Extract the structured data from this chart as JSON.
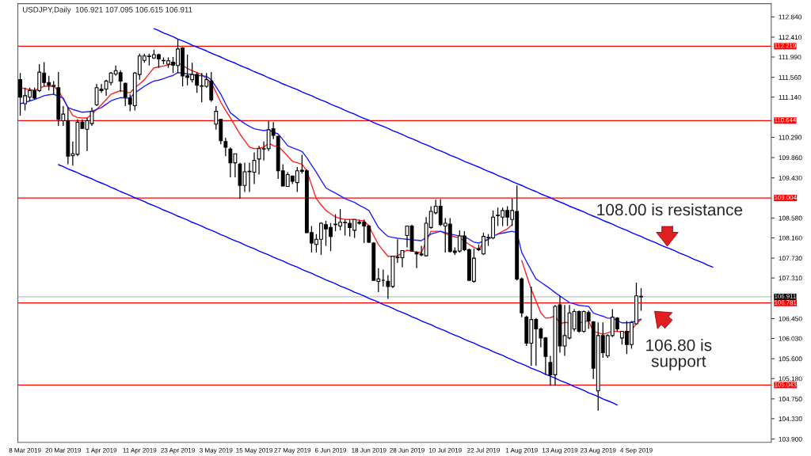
{
  "chart_data": {
    "type": "candlestick",
    "title": "USDJPY,Daily  106.921 107.095 106.615 106.911",
    "categories": [
      null,
      "8 Mar 2019",
      null,
      null,
      null,
      null,
      null,
      null,
      null,
      "20 Mar 2019",
      null,
      null,
      null,
      null,
      null,
      null,
      null,
      "1 Apr 2019",
      null,
      null,
      null,
      null,
      null,
      null,
      null,
      "11 Apr 2019",
      null,
      null,
      null,
      null,
      null,
      null,
      null,
      "23 Apr 2019",
      null,
      null,
      null,
      null,
      null,
      null,
      null,
      "3 May 2019",
      null,
      null,
      null,
      null,
      null,
      null,
      null,
      "15 May 2019",
      null,
      null,
      null,
      null,
      null,
      null,
      null,
      "27 May 2019",
      null,
      null,
      null,
      null,
      null,
      null,
      null,
      "6 Jun 2019",
      null,
      null,
      null,
      null,
      null,
      null,
      null,
      "18 Jun 2019",
      null,
      null,
      null,
      null,
      null,
      null,
      null,
      "28 Jun 2019",
      null,
      null,
      null,
      null,
      null,
      null,
      null,
      "10 Jul 2019",
      null,
      null,
      null,
      null,
      null,
      null,
      null,
      "22 Jul 2019",
      null,
      null,
      null,
      null,
      null,
      null,
      null,
      "1 Aug 2019",
      null,
      null,
      null,
      null,
      null,
      null,
      null,
      "13 Aug 2019",
      null,
      null,
      null,
      null,
      null,
      null,
      null,
      "23 Aug 2019",
      null,
      null,
      null,
      null,
      null,
      null,
      null,
      "4 Sep 2019",
      null,
      null,
      null,
      null,
      null,
      null,
      null,
      null,
      null,
      null,
      null,
      null,
      null,
      null,
      null,
      null,
      null,
      null,
      null,
      null,
      null,
      null,
      null,
      null,
      null,
      null,
      null,
      null
    ],
    "ohlc": [
      [
        111.51,
        111.65,
        110.75,
        111.14
      ],
      [
        111.0,
        111.34,
        110.86,
        111.17
      ],
      [
        111.14,
        111.34,
        111.06,
        111.28
      ],
      [
        111.28,
        111.34,
        111.09,
        111.12
      ],
      [
        111.28,
        111.84,
        111.25,
        111.67
      ],
      [
        111.65,
        111.88,
        111.37,
        111.45
      ],
      [
        111.45,
        111.59,
        111.28,
        111.39
      ],
      [
        111.37,
        111.48,
        111.2,
        111.39
      ],
      [
        111.34,
        111.67,
        110.53,
        110.67
      ],
      [
        110.64,
        110.95,
        110.53,
        110.78
      ],
      [
        110.64,
        110.92,
        109.72,
        109.89
      ],
      [
        109.9,
        110.2,
        109.69,
        109.94
      ],
      [
        109.93,
        110.67,
        109.89,
        110.61
      ],
      [
        110.61,
        110.67,
        110.47,
        110.48
      ],
      [
        110.46,
        110.7,
        110.0,
        110.64
      ],
      [
        110.58,
        110.92,
        110.53,
        110.84
      ],
      [
        110.98,
        111.42,
        110.95,
        111.34
      ],
      [
        111.31,
        111.42,
        111.23,
        111.28
      ],
      [
        111.31,
        111.51,
        111.17,
        111.48
      ],
      [
        111.45,
        111.67,
        111.39,
        111.65
      ],
      [
        111.63,
        111.81,
        111.59,
        111.7
      ],
      [
        111.66,
        111.71,
        111.25,
        111.48
      ],
      [
        111.43,
        111.45,
        110.95,
        111.14
      ],
      [
        111.12,
        111.2,
        110.84,
        110.99
      ],
      [
        110.96,
        111.67,
        110.86,
        111.65
      ],
      [
        111.62,
        112.06,
        111.51,
        112.01
      ],
      [
        111.92,
        112.06,
        111.87,
        112.01
      ],
      [
        112.0,
        112.06,
        111.81,
        112.01
      ],
      [
        111.97,
        112.14,
        111.95,
        112.04
      ],
      [
        112.04,
        112.06,
        111.76,
        111.95
      ],
      [
        111.92,
        111.98,
        111.84,
        111.91
      ],
      [
        111.84,
        111.98,
        111.76,
        111.91
      ],
      [
        111.88,
        111.99,
        111.65,
        111.82
      ],
      [
        111.81,
        112.37,
        111.65,
        112.16
      ],
      [
        112.18,
        112.2,
        111.37,
        111.59
      ],
      [
        111.59,
        112.04,
        111.39,
        111.56
      ],
      [
        111.51,
        111.87,
        111.45,
        111.62
      ],
      [
        111.62,
        111.67,
        111.23,
        111.39
      ],
      [
        111.38,
        111.65,
        111.03,
        111.37
      ],
      [
        111.37,
        111.65,
        111.34,
        111.51
      ],
      [
        111.48,
        111.67,
        111.04,
        111.08
      ],
      [
        110.57,
        110.95,
        110.45,
        110.84
      ],
      [
        110.67,
        110.67,
        110.14,
        110.22
      ],
      [
        110.2,
        110.28,
        109.89,
        110.08
      ],
      [
        110.04,
        110.08,
        109.44,
        109.75
      ],
      [
        109.75,
        109.94,
        109.44,
        109.94
      ],
      [
        109.72,
        109.75,
        108.99,
        109.27
      ],
      [
        109.27,
        109.75,
        109.13,
        109.56
      ],
      [
        109.57,
        109.75,
        109.13,
        109.56
      ],
      [
        109.55,
        109.97,
        109.3,
        109.8
      ],
      [
        109.83,
        110.11,
        109.5,
        110.05
      ],
      [
        110.04,
        110.2,
        109.8,
        110.05
      ],
      [
        110.05,
        110.64,
        110.0,
        110.45
      ],
      [
        110.47,
        110.61,
        110.25,
        110.33
      ],
      [
        110.31,
        110.33,
        109.41,
        109.58
      ],
      [
        109.58,
        109.72,
        109.25,
        109.26
      ],
      [
        109.25,
        109.55,
        109.24,
        109.5
      ],
      [
        109.47,
        109.47,
        109.3,
        109.36
      ],
      [
        109.33,
        109.66,
        109.13,
        109.58
      ],
      [
        109.57,
        109.92,
        109.52,
        109.59
      ],
      [
        109.58,
        109.61,
        108.27,
        108.27
      ],
      [
        108.27,
        108.41,
        107.85,
        108.05
      ],
      [
        108.02,
        108.24,
        107.85,
        108.13
      ],
      [
        108.13,
        108.49,
        107.8,
        108.47
      ],
      [
        108.44,
        108.52,
        107.99,
        108.35
      ],
      [
        108.38,
        108.47,
        107.88,
        108.19
      ],
      [
        108.45,
        108.66,
        108.3,
        108.44
      ],
      [
        108.41,
        108.77,
        108.32,
        108.49
      ],
      [
        108.48,
        108.55,
        108.21,
        108.49
      ],
      [
        108.47,
        108.55,
        108.19,
        108.38
      ],
      [
        108.32,
        108.55,
        108.16,
        108.55
      ],
      [
        108.49,
        108.55,
        108.44,
        108.47
      ],
      [
        108.49,
        108.55,
        108.05,
        108.41
      ],
      [
        108.41,
        108.44,
        108.05,
        108.07
      ],
      [
        108.05,
        108.07,
        107.26,
        107.26
      ],
      [
        107.24,
        107.52,
        107.01,
        107.29
      ],
      [
        107.26,
        107.49,
        107.13,
        107.26
      ],
      [
        107.24,
        107.37,
        106.87,
        107.13
      ],
      [
        107.13,
        107.77,
        107.1,
        107.77
      ],
      [
        107.74,
        108.13,
        107.63,
        107.75
      ],
      [
        107.74,
        107.89,
        107.54,
        107.89
      ],
      [
        108.21,
        108.41,
        107.96,
        108.41
      ],
      [
        108.41,
        108.44,
        107.88,
        107.88
      ],
      [
        107.85,
        107.88,
        107.52,
        107.82
      ],
      [
        107.8,
        107.99,
        107.77,
        107.82
      ],
      [
        107.78,
        108.6,
        107.77,
        108.47
      ],
      [
        108.38,
        108.83,
        108.35,
        108.72
      ],
      [
        108.69,
        108.97,
        108.66,
        108.83
      ],
      [
        108.83,
        108.98,
        108.41,
        108.44
      ],
      [
        108.41,
        108.58,
        107.85,
        108.47
      ],
      [
        108.45,
        108.58,
        107.85,
        107.87
      ],
      [
        107.88,
        107.96,
        107.8,
        107.85
      ],
      [
        107.88,
        108.32,
        107.85,
        108.2
      ],
      [
        108.2,
        108.3,
        107.88,
        107.91
      ],
      [
        107.91,
        107.93,
        107.26,
        107.26
      ],
      [
        107.24,
        107.93,
        107.21,
        107.73
      ],
      [
        107.91,
        108.02,
        107.88,
        107.93
      ],
      [
        107.82,
        108.27,
        107.8,
        108.19
      ],
      [
        108.16,
        108.24,
        107.99,
        108.17
      ],
      [
        108.16,
        108.74,
        108.13,
        108.6
      ],
      [
        108.63,
        108.8,
        108.41,
        108.64
      ],
      [
        108.6,
        108.8,
        108.41,
        108.74
      ],
      [
        108.74,
        108.83,
        108.41,
        108.6
      ],
      [
        108.55,
        108.99,
        108.41,
        108.74
      ],
      [
        108.72,
        109.27,
        107.26,
        107.29
      ],
      [
        107.29,
        107.32,
        106.48,
        106.57
      ],
      [
        106.48,
        106.51,
        105.87,
        105.93
      ],
      [
        105.93,
        107.13,
        105.45,
        106.43
      ],
      [
        106.43,
        106.46,
        105.45,
        106.23
      ],
      [
        106.23,
        106.26,
        105.84,
        106.04
      ],
      [
        106.04,
        106.06,
        105.26,
        105.65
      ],
      [
        105.52,
        105.66,
        105.03,
        105.26
      ],
      [
        105.26,
        106.74,
        105.03,
        106.71
      ],
      [
        106.74,
        106.93,
        105.73,
        105.87
      ],
      [
        105.87,
        106.74,
        105.66,
        106.09
      ],
      [
        106.04,
        106.74,
        106.01,
        106.57
      ],
      [
        106.23,
        106.65,
        106.18,
        106.6
      ],
      [
        106.6,
        106.62,
        106.15,
        106.18
      ],
      [
        106.18,
        106.62,
        106.15,
        106.6
      ],
      [
        106.58,
        106.62,
        106.23,
        106.4
      ],
      [
        106.38,
        106.4,
        105.17,
        105.4
      ],
      [
        104.92,
        106.37,
        104.5,
        106.09
      ],
      [
        106.09,
        106.37,
        105.62,
        105.73
      ],
      [
        105.66,
        106.12,
        105.62,
        106.09
      ],
      [
        106.09,
        106.65,
        106.06,
        106.48
      ],
      [
        106.46,
        106.48,
        106.18,
        106.23
      ],
      [
        106.04,
        106.18,
        105.9,
        106.18
      ],
      [
        106.18,
        106.4,
        105.7,
        105.9
      ],
      [
        105.9,
        106.4,
        105.81,
        106.37
      ],
      [
        106.34,
        107.21,
        106.32,
        106.93
      ],
      [
        106.921,
        107.095,
        106.615,
        106.911
      ],
      null,
      null,
      null,
      null,
      null,
      null,
      null,
      null,
      null,
      null,
      null,
      null,
      null,
      null,
      null,
      null,
      null,
      null,
      null,
      null,
      null,
      null,
      null,
      null,
      null,
      null,
      null
    ],
    "series": [
      {
        "type": "line",
        "color": "#ff2020",
        "values": [
          111.34,
          111.32,
          111.3,
          111.28,
          111.33,
          111.37,
          111.37,
          111.37,
          111.28,
          111.1,
          110.92,
          110.75,
          110.71,
          110.7,
          110.7,
          110.78,
          110.88,
          110.98,
          111.09,
          111.2,
          111.24,
          111.28,
          111.25,
          111.23,
          111.34,
          111.42,
          111.51,
          111.64,
          111.76,
          111.78,
          111.8,
          111.82,
          111.84,
          111.87,
          111.81,
          111.75,
          111.7,
          111.66,
          111.62,
          111.53,
          111.45,
          111.24,
          111.03,
          110.86,
          110.7,
          110.53,
          110.36,
          110.22,
          110.08,
          110.05,
          110.06,
          110.08,
          110.17,
          110.11,
          110.1,
          110.0,
          109.89,
          109.78,
          109.75,
          109.72,
          109.58,
          109.28,
          108.99,
          108.86,
          108.74,
          108.67,
          108.6,
          108.57,
          108.55,
          108.55,
          108.55,
          108.53,
          108.52,
          108.41,
          108.21,
          108.02,
          107.89,
          107.77,
          107.77,
          107.78,
          107.84,
          107.9,
          107.88,
          107.86,
          107.85,
          108.08,
          108.3,
          108.3,
          108.3,
          108.25,
          108.21,
          108.18,
          108.16,
          108.09,
          108.02,
          107.96,
          107.91,
          108.07,
          108.13,
          null,
          108.24,
          108.3,
          108.35,
          108.44,
          null,
          107.68,
          107.37,
          107.07,
          106.82,
          106.57,
          106.46,
          106.47,
          106.51,
          106.34,
          106.37,
          106.36,
          null,
          106.36,
          106.38,
          106.4,
          106.18,
          106.15,
          106.12,
          106.15,
          106.18,
          106.18,
          106.16,
          106.15,
          106.2,
          106.35,
          106.43,
          null,
          null,
          null,
          null,
          null,
          null,
          null,
          null,
          null,
          null,
          null,
          null,
          null,
          null,
          null,
          null,
          null,
          null,
          null,
          null,
          null,
          null,
          null,
          null,
          null,
          null,
          null
        ]
      },
      {
        "type": "line",
        "color": "#2020ff",
        "values": [
          111.0,
          111.03,
          111.06,
          111.09,
          111.13,
          111.17,
          111.19,
          111.2,
          111.16,
          111.12,
          110.92,
          110.88,
          110.85,
          110.82,
          110.83,
          110.84,
          110.88,
          110.92,
          110.99,
          111.06,
          111.1,
          111.13,
          111.12,
          111.12,
          111.23,
          111.3,
          111.37,
          111.43,
          111.48,
          111.5,
          111.53,
          111.57,
          111.6,
          111.66,
          111.65,
          111.63,
          111.62,
          111.6,
          111.59,
          111.58,
          111.51,
          111.36,
          111.2,
          111.0,
          110.81,
          110.73,
          110.65,
          110.58,
          110.52,
          110.47,
          110.45,
          110.43,
          110.45,
          110.4,
          110.36,
          110.24,
          110.11,
          110.07,
          110.03,
          109.99,
          109.86,
          109.7,
          109.55,
          109.38,
          109.22,
          109.16,
          109.11,
          109.05,
          108.99,
          108.95,
          108.91,
          108.85,
          108.8,
          108.74,
          108.56,
          108.38,
          108.28,
          108.19,
          108.17,
          108.15,
          108.14,
          108.13,
          108.12,
          108.11,
          108.1,
          108.17,
          108.24,
          108.27,
          108.3,
          108.27,
          108.24,
          108.22,
          108.2,
          108.19,
          108.13,
          108.07,
          108.05,
          108.09,
          108.13,
          108.19,
          108.24,
          108.26,
          108.28,
          108.3,
          108.27,
          107.85,
          107.66,
          107.47,
          107.29,
          107.22,
          107.15,
          107.08,
          107.0,
          106.93,
          106.86,
          106.79,
          106.76,
          106.73,
          106.72,
          106.71,
          106.57,
          106.53,
          106.5,
          106.46,
          106.46,
          106.41,
          106.36,
          106.36,
          106.37,
          106.41,
          106.44,
          null,
          null,
          null,
          null,
          null,
          null,
          null,
          null,
          null,
          null,
          null,
          null,
          null,
          null,
          null,
          null,
          null,
          null,
          null,
          null,
          null,
          null,
          null,
          null,
          null,
          null,
          null
        ]
      },
      {
        "type": "line",
        "color": "#0000ff",
        "values": [
          null,
          null,
          null,
          null,
          null,
          null,
          null,
          null,
          null,
          null,
          null,
          null,
          null,
          null,
          null,
          null,
          null,
          null,
          null,
          null,
          null,
          null,
          null,
          null,
          null,
          null,
          null,
          null,
          112.59,
          112.55,
          112.5,
          112.46,
          112.42,
          112.37,
          112.33,
          112.29,
          112.24,
          112.2,
          112.16,
          112.12,
          112.07,
          112.03,
          111.99,
          111.94,
          111.9,
          111.86,
          111.81,
          111.77,
          111.73,
          111.68,
          111.64,
          111.6,
          111.55,
          111.51,
          111.47,
          111.42,
          111.38,
          111.34,
          111.3,
          111.25,
          111.21,
          111.17,
          111.12,
          111.08,
          111.04,
          110.99,
          110.95,
          110.91,
          110.86,
          110.82,
          110.78,
          110.73,
          110.69,
          110.65,
          110.6,
          110.56,
          110.52,
          110.48,
          110.43,
          110.39,
          110.35,
          110.3,
          110.26,
          110.22,
          110.17,
          110.13,
          110.09,
          110.04,
          110.0,
          109.96,
          109.91,
          109.87,
          109.83,
          109.78,
          109.74,
          109.7,
          109.66,
          109.61,
          109.57,
          109.53,
          109.48,
          109.44,
          109.4,
          109.35,
          109.31,
          109.27,
          109.22,
          109.18,
          109.14,
          109.09,
          109.05,
          109.01,
          108.96,
          108.92,
          108.88,
          108.83,
          108.79,
          108.75,
          108.71,
          108.66,
          108.62,
          108.58,
          108.53,
          108.49,
          108.45,
          108.4,
          108.36,
          108.32,
          108.27,
          108.23,
          108.19,
          108.14,
          108.1,
          108.06,
          108.01,
          107.97,
          107.93,
          107.89,
          107.84,
          107.8,
          107.76,
          107.71,
          107.67,
          107.63,
          107.58,
          107.54,
          null,
          null,
          null,
          null,
          null,
          null,
          null,
          null,
          null,
          null,
          null,
          null
        ]
      },
      {
        "type": "line",
        "color": "#0000ff",
        "values": [
          null,
          null,
          null,
          null,
          null,
          null,
          null,
          null,
          109.71,
          109.67,
          109.62,
          109.58,
          109.54,
          109.49,
          109.45,
          109.41,
          109.36,
          109.32,
          109.28,
          109.23,
          109.19,
          109.14,
          109.1,
          109.06,
          109.01,
          108.97,
          108.93,
          108.88,
          108.84,
          108.8,
          108.75,
          108.71,
          108.67,
          108.62,
          108.58,
          108.54,
          108.49,
          108.45,
          108.41,
          108.36,
          108.32,
          108.28,
          108.23,
          108.19,
          108.14,
          108.1,
          108.06,
          108.01,
          107.97,
          107.93,
          107.88,
          107.84,
          107.8,
          107.75,
          107.71,
          107.67,
          107.62,
          107.58,
          107.54,
          107.49,
          107.45,
          107.41,
          107.36,
          107.32,
          107.27,
          107.23,
          107.19,
          107.14,
          107.1,
          107.06,
          107.01,
          106.97,
          106.93,
          106.88,
          106.84,
          106.8,
          106.75,
          106.71,
          106.67,
          106.62,
          106.58,
          106.54,
          106.49,
          106.45,
          106.4,
          106.36,
          106.32,
          106.27,
          106.23,
          106.19,
          106.14,
          106.1,
          106.06,
          106.01,
          105.97,
          105.93,
          105.88,
          105.84,
          105.8,
          105.75,
          105.71,
          105.67,
          105.62,
          105.58,
          105.53,
          105.49,
          105.45,
          105.4,
          105.36,
          105.32,
          105.27,
          105.23,
          105.19,
          105.14,
          105.1,
          105.06,
          105.01,
          104.97,
          104.93,
          104.88,
          104.84,
          104.8,
          104.75,
          104.71,
          104.67,
          104.62,
          null,
          null,
          null,
          null,
          null,
          null,
          null,
          null,
          null,
          null,
          null,
          null,
          null,
          null,
          null,
          null,
          null,
          null,
          null,
          null,
          null,
          null,
          null,
          null,
          null,
          null,
          null,
          null,
          null,
          null,
          null,
          null
        ]
      }
    ],
    "ylim": [
      103.83,
      113.12
    ],
    "yticks": [
      {
        "value": 103.9,
        "label": "103.900"
      },
      {
        "value": 104.33,
        "label": "104.330"
      },
      {
        "value": 104.75,
        "label": "104.750"
      },
      {
        "value": 105.18,
        "label": "105.180"
      },
      {
        "value": 105.6,
        "label": "105.600"
      },
      {
        "value": 106.03,
        "label": "106.030"
      },
      {
        "value": 106.45,
        "label": "106.450"
      },
      {
        "value": 107.31,
        "label": "107.310"
      },
      {
        "value": 107.73,
        "label": "107.730"
      },
      {
        "value": 108.16,
        "label": "108.160"
      },
      {
        "value": 108.58,
        "label": "108.580"
      },
      {
        "value": 109.43,
        "label": "109.430"
      },
      {
        "value": 109.86,
        "label": "109.860"
      },
      {
        "value": 110.29,
        "label": "110.290"
      },
      {
        "value": 111.14,
        "label": "111.140"
      },
      {
        "value": 111.56,
        "label": "111.560"
      },
      {
        "value": 111.99,
        "label": "111.990"
      },
      {
        "value": 112.41,
        "label": "112.410"
      },
      {
        "value": 112.84,
        "label": "112.840"
      }
    ],
    "ref_lines": [
      {
        "axis": "y",
        "value": 112.219,
        "label": "112.219",
        "color": "#ff0000"
      },
      {
        "axis": "y",
        "value": 110.644,
        "label": "110.644",
        "color": "#ff0000"
      },
      {
        "axis": "y",
        "value": 109.004,
        "label": "109.004",
        "color": "#ff0000"
      },
      {
        "axis": "y",
        "value": 106.911,
        "label": "106.911",
        "color": "#c0c0c0"
      },
      {
        "axis": "y",
        "value": 106.781,
        "label": "106.781",
        "color": "#ff0000"
      },
      {
        "axis": "y",
        "value": 105.043,
        "label": "105.043",
        "color": "#ff0000"
      }
    ],
    "annotations": [
      "108.00 is resistance",
      "106.80 is\nsupport"
    ]
  }
}
